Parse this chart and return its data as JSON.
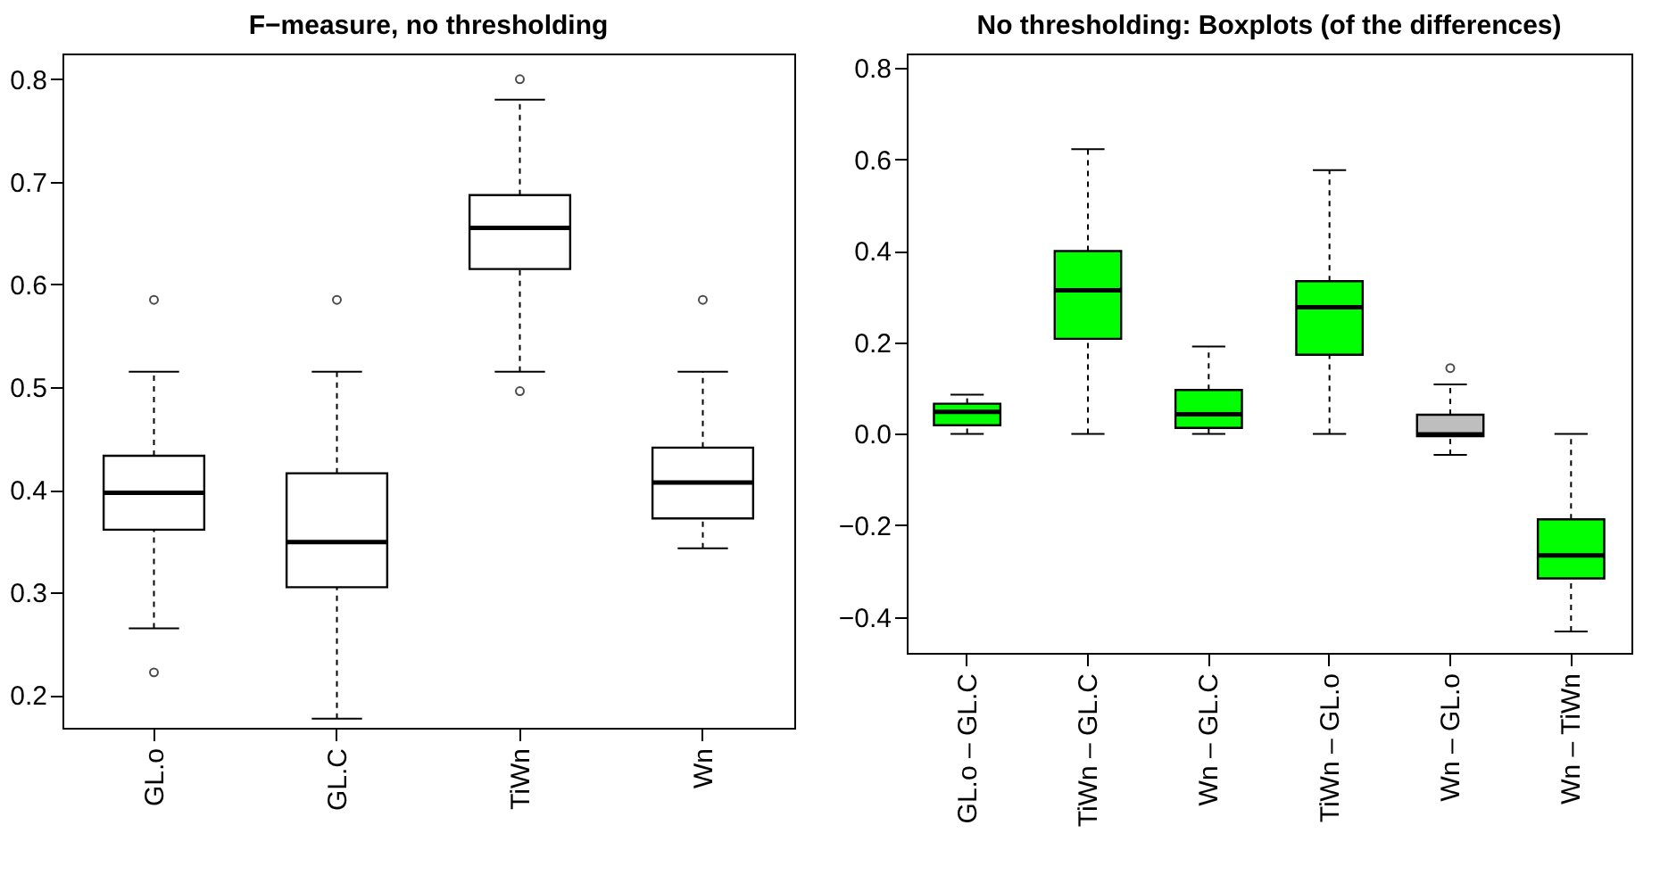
{
  "chart_data": [
    {
      "type": "box",
      "title": "F−measure, no thresholding",
      "categories": [
        "GL.o",
        "GL.C",
        "TiWn",
        "Wn"
      ],
      "colors": [
        "#ffffff",
        "#ffffff",
        "#ffffff",
        "#ffffff"
      ],
      "ylim": [
        0.168,
        0.825
      ],
      "yticks": [
        0.2,
        0.3,
        0.4,
        0.5,
        0.6,
        0.7,
        0.8
      ],
      "grid": false,
      "boxes": [
        {
          "low": 0.265,
          "q1": 0.361,
          "median": 0.397,
          "q3": 0.433,
          "high": 0.515,
          "outliers": [
            0.585,
            0.222
          ]
        },
        {
          "low": 0.177,
          "q1": 0.305,
          "median": 0.349,
          "q3": 0.416,
          "high": 0.515,
          "outliers": [
            0.585
          ]
        },
        {
          "low": 0.515,
          "q1": 0.615,
          "median": 0.655,
          "q3": 0.687,
          "high": 0.78,
          "outliers": [
            0.8,
            0.496
          ]
        },
        {
          "low": 0.343,
          "q1": 0.372,
          "median": 0.407,
          "q3": 0.441,
          "high": 0.515,
          "outliers": [
            0.585
          ]
        }
      ]
    },
    {
      "type": "box",
      "title": "No thresholding: Boxplots (of the differences)",
      "categories": [
        "GL.o – GL.C",
        "TiWn – GL.C",
        "Wn – GL.C",
        "TiWn – GL.o",
        "Wn – GL.o",
        "Wn – TiWn"
      ],
      "colors": [
        "#00ff00",
        "#00ff00",
        "#00ff00",
        "#00ff00",
        "#bebebe",
        "#00ff00"
      ],
      "ylim": [
        -0.479,
        0.832
      ],
      "yticks": [
        {
          "value": -0.4,
          "label": "−0.4"
        },
        {
          "value": -0.2,
          "label": "−0.2"
        },
        {
          "value": 0,
          "label": "0.0"
        },
        0.2,
        0.4,
        0.6,
        0.8
      ],
      "grid": false,
      "boxes": [
        {
          "low": 0,
          "q1": 0.019,
          "median": 0.048,
          "q3": 0.066,
          "high": 0.086
        },
        {
          "low": 0,
          "q1": 0.208,
          "median": 0.314,
          "q3": 0.4,
          "high": 0.623
        },
        {
          "low": 0,
          "q1": 0.013,
          "median": 0.043,
          "q3": 0.096,
          "high": 0.191
        },
        {
          "low": 0,
          "q1": 0.173,
          "median": 0.277,
          "q3": 0.334,
          "high": 0.577
        },
        {
          "low": -0.046,
          "q1": -0.005,
          "median": -0.001,
          "q3": 0.042,
          "high": 0.108,
          "outliers": [
            0.144
          ]
        },
        {
          "low": -0.432,
          "q1": -0.316,
          "median": -0.266,
          "q3": -0.187,
          "high": 0
        }
      ]
    }
  ]
}
